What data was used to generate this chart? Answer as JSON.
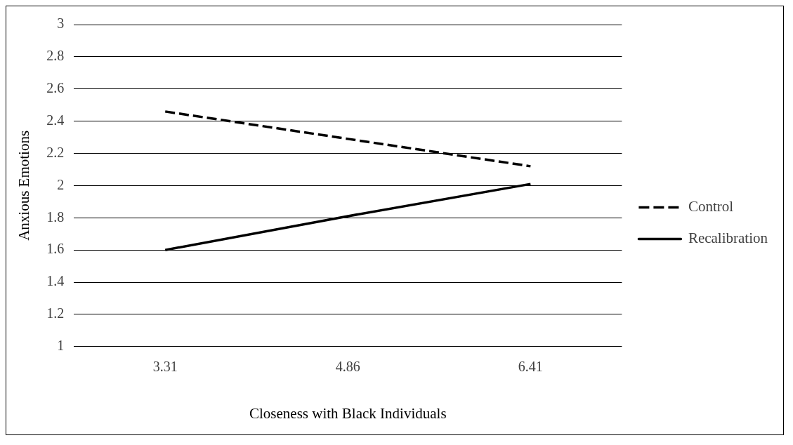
{
  "chart_data": {
    "type": "line",
    "xlabel": "Closeness with Black Individuals",
    "ylabel": "Anxious Emotions",
    "categories": [
      "3.31",
      "4.86",
      "6.41"
    ],
    "series": [
      {
        "name": "Control",
        "color": "#000000",
        "values": [
          2.46,
          2.29,
          2.12
        ],
        "line_style": "dashed"
      },
      {
        "name": "Recalibration",
        "color": "#000000",
        "values": [
          1.6,
          1.81,
          2.01
        ],
        "line_style": "solid"
      }
    ],
    "ylim": [
      1,
      3
    ],
    "yticks": [
      1,
      1.2,
      1.4,
      1.6,
      1.8,
      2,
      2.2,
      2.4,
      2.6,
      2.8,
      3
    ],
    "grid": "y",
    "legend": "right",
    "marker": "none"
  }
}
